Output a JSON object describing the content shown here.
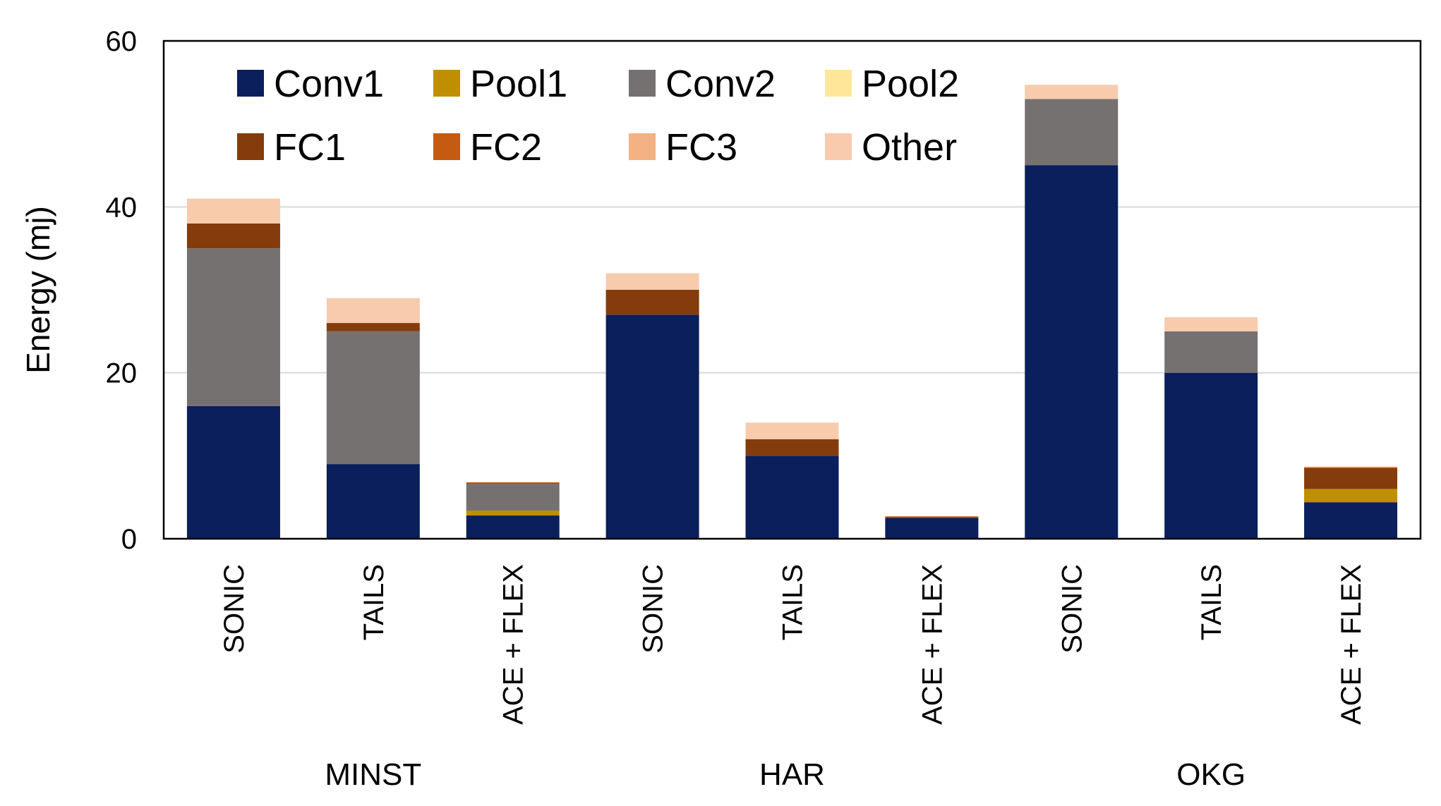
{
  "chart_data": {
    "type": "bar",
    "stacked": true,
    "title": "",
    "xlabel": "",
    "ylabel": "Energy (mj)",
    "ylim": [
      0,
      60
    ],
    "yticks": [
      0,
      20,
      40,
      60
    ],
    "grid": "horizontal",
    "legend_position": "top-left-inside",
    "groups": [
      {
        "name": "MINST",
        "categories": [
          "SONIC",
          "TAILS",
          "ACE + FLEX"
        ]
      },
      {
        "name": "HAR",
        "categories": [
          "SONIC",
          "TAILS",
          "ACE + FLEX"
        ]
      },
      {
        "name": "OKG",
        "categories": [
          "SONIC",
          "TAILS",
          "ACE + FLEX"
        ]
      }
    ],
    "categories": [
      "SONIC",
      "TAILS",
      "ACE + FLEX",
      "SONIC",
      "TAILS",
      "ACE + FLEX",
      "SONIC",
      "TAILS",
      "ACE + FLEX"
    ],
    "series": [
      {
        "name": "Conv1",
        "color": "#0a1f5c",
        "values": [
          16,
          9,
          2.8,
          27,
          10,
          2.5,
          45,
          20,
          4.4
        ]
      },
      {
        "name": "Pool1",
        "color": "#bf8f00",
        "values": [
          0,
          0,
          0.6,
          0,
          0,
          0,
          0,
          0,
          1.6
        ]
      },
      {
        "name": "Conv2",
        "color": "#767171",
        "values": [
          19,
          16,
          3.2,
          0,
          0,
          0,
          8,
          5,
          0
        ]
      },
      {
        "name": "Pool2",
        "color": "#ffe699",
        "values": [
          0,
          0,
          0,
          0,
          0,
          0,
          0,
          0,
          0
        ]
      },
      {
        "name": "FC1",
        "color": "#843c0c",
        "values": [
          3,
          1,
          0.1,
          3,
          2,
          0.1,
          0,
          0,
          2.5
        ]
      },
      {
        "name": "FC2",
        "color": "#c55a11",
        "values": [
          0,
          0,
          0.1,
          0,
          0,
          0.1,
          0,
          0,
          0.1
        ]
      },
      {
        "name": "FC3",
        "color": "#f4b183",
        "values": [
          0,
          0,
          0,
          0,
          0,
          0,
          0,
          0,
          0.1
        ]
      },
      {
        "name": "Other",
        "color": "#f8cbad",
        "values": [
          3,
          3,
          0,
          2,
          2,
          0,
          1.7,
          1.7,
          0
        ]
      }
    ]
  }
}
